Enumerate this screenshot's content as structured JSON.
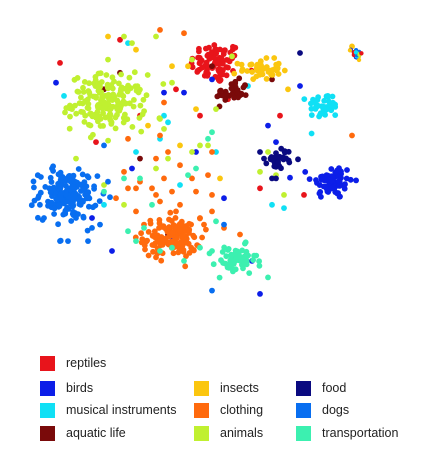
{
  "chart_data": {
    "type": "scatter",
    "title": "",
    "xlabel": "",
    "ylabel": "",
    "axes_visible": false,
    "grid": false,
    "legend_position": "bottom",
    "xlim": [
      0,
      100
    ],
    "ylim": [
      0,
      100
    ],
    "series": [
      {
        "name": "reptiles",
        "color": "#e8141b",
        "clusters": [
          {
            "center": [
              49,
              87
            ],
            "spread": [
              3.2,
              3.2
            ],
            "count": 80
          }
        ],
        "scattered": [
          [
            10,
            87
          ],
          [
            25,
            94
          ],
          [
            19,
            63
          ],
          [
            60,
            49
          ],
          [
            39,
            79
          ],
          [
            71,
            47
          ],
          [
            45,
            71
          ],
          [
            30,
            71
          ],
          [
            52,
            76
          ],
          [
            65,
            71
          ]
        ]
      },
      {
        "name": "birds",
        "color": "#0c1ee8",
        "clusters": [
          {
            "center": [
              78,
              51
            ],
            "spread": [
              2.6,
              2.6
            ],
            "count": 70
          }
        ],
        "scattered": [
          [
            41,
            78
          ],
          [
            36,
            78
          ],
          [
            9,
            81
          ],
          [
            51,
            46
          ],
          [
            23,
            30
          ],
          [
            64,
            63
          ],
          [
            62,
            68
          ],
          [
            48,
            82
          ],
          [
            28,
            55
          ],
          [
            63,
            58
          ],
          [
            38,
            34
          ],
          [
            58,
            27
          ],
          [
            44,
            60
          ],
          [
            18,
            40
          ],
          [
            70,
            80
          ],
          [
            60,
            17
          ]
        ]
      },
      {
        "name": "musical instruments",
        "color": "#10e0f5",
        "clusters": [
          {
            "center": [
              76,
              74
            ],
            "spread": [
              2.0,
              2.0
            ],
            "count": 40
          }
        ],
        "scattered": [
          [
            36,
            71
          ],
          [
            37,
            69
          ],
          [
            11,
            77
          ],
          [
            63,
            44
          ],
          [
            27,
            93
          ],
          [
            23,
            77
          ],
          [
            49,
            60
          ],
          [
            29,
            60
          ],
          [
            40,
            50
          ],
          [
            21,
            44
          ],
          [
            35,
            64
          ],
          [
            57,
            80
          ],
          [
            66,
            43
          ]
        ]
      },
      {
        "name": "aquatic life",
        "color": "#7a0a0a",
        "clusters": [
          {
            "center": [
              53,
              78
            ],
            "spread": [
              2.0,
              1.8
            ],
            "count": 38
          }
        ],
        "scattered": [
          [
            48,
            86
          ],
          [
            30,
            58
          ],
          [
            25,
            84
          ],
          [
            63,
            82
          ],
          [
            37,
            35
          ],
          [
            21,
            79
          ]
        ]
      },
      {
        "name": "insects",
        "color": "#fbc60f",
        "clusters": [
          {
            "center": [
              60,
              85
            ],
            "spread": [
              2.6,
              1.5
            ],
            "count": 48
          }
        ],
        "scattered": [
          [
            29,
            91
          ],
          [
            22,
            95
          ],
          [
            83,
            92
          ],
          [
            38,
            86
          ],
          [
            32,
            68
          ],
          [
            44,
            73
          ],
          [
            67,
            79
          ],
          [
            50,
            52
          ],
          [
            42,
            86
          ],
          [
            40,
            62
          ]
        ]
      },
      {
        "name": "clothing",
        "color": "#ff6a0d",
        "clusters": [
          {
            "center": [
              38,
              34
            ],
            "spread": [
              3.6,
              3.0
            ],
            "count": 130
          }
        ],
        "scattered": [
          [
            35,
            97
          ],
          [
            41,
            96
          ],
          [
            35,
            65
          ],
          [
            36,
            75
          ],
          [
            48,
            60
          ],
          [
            40,
            56
          ],
          [
            26,
            54
          ],
          [
            27,
            64
          ],
          [
            36,
            52
          ],
          [
            29,
            42
          ],
          [
            47,
            53
          ],
          [
            35,
            45
          ],
          [
            44,
            48
          ],
          [
            48,
            42
          ],
          [
            83,
            65
          ],
          [
            45,
            40
          ],
          [
            55,
            35
          ],
          [
            24,
            46
          ],
          [
            33,
            49
          ],
          [
            29,
            49
          ],
          [
            30,
            51
          ],
          [
            31,
            38
          ],
          [
            51,
            37
          ],
          [
            43,
            52
          ],
          [
            34,
            58
          ],
          [
            34,
            47
          ],
          [
            37,
            60
          ],
          [
            40,
            44
          ],
          [
            48,
            47
          ],
          [
            46,
            38
          ],
          [
            27,
            49
          ],
          [
            38,
            48
          ],
          [
            39,
            42
          ]
        ]
      },
      {
        "name": "animals",
        "color": "#c0f030",
        "clusters": [
          {
            "center": [
              22,
              75
            ],
            "spread": [
              4.6,
              4.2
            ],
            "count": 170
          }
        ],
        "scattered": [
          [
            26,
            95
          ],
          [
            22,
            88
          ],
          [
            28,
            93
          ],
          [
            53,
            89
          ],
          [
            43,
            88
          ],
          [
            38,
            81
          ],
          [
            13,
            73
          ],
          [
            14,
            58
          ],
          [
            34,
            95
          ],
          [
            36,
            67
          ],
          [
            45,
            62
          ],
          [
            47,
            62
          ],
          [
            34,
            55
          ],
          [
            37,
            58
          ],
          [
            43,
            60
          ],
          [
            35,
            70
          ],
          [
            49,
            73
          ],
          [
            62,
            60
          ],
          [
            21,
            50
          ],
          [
            26,
            44
          ],
          [
            66,
            47
          ],
          [
            64,
            53
          ],
          [
            60,
            54
          ]
        ]
      },
      {
        "name": "food",
        "color": "#0a0a80",
        "clusters": [
          {
            "center": [
              65,
              58
            ],
            "spread": [
              1.5,
              1.5
            ],
            "count": 30
          }
        ],
        "scattered": [
          [
            61,
            58
          ],
          [
            64,
            52
          ],
          [
            70,
            90
          ],
          [
            63,
            52
          ],
          [
            60,
            60
          ]
        ]
      },
      {
        "name": "dogs",
        "color": "#086ef0",
        "clusters": [
          {
            "center": [
              12,
              47
            ],
            "spread": [
              3.6,
              3.6
            ],
            "count": 170
          }
        ],
        "scattered": [
          [
            10,
            33
          ],
          [
            18,
            37
          ],
          [
            20,
            38
          ],
          [
            8,
            55
          ],
          [
            21,
            62
          ],
          [
            14,
            40
          ],
          [
            22,
            51
          ],
          [
            17,
            33
          ],
          [
            6,
            40
          ],
          [
            12,
            33
          ],
          [
            48,
            18
          ],
          [
            51,
            38
          ]
        ]
      },
      {
        "name": "transportation",
        "color": "#3cf0b0",
        "clusters": [
          {
            "center": [
              54,
              27
            ],
            "spread": [
              2.6,
              2.3
            ],
            "count": 60
          }
        ],
        "scattered": [
          [
            21,
            48
          ],
          [
            26,
            52
          ],
          [
            31,
            37
          ],
          [
            48,
            66
          ],
          [
            42,
            53
          ],
          [
            38,
            31
          ],
          [
            30,
            52
          ],
          [
            44,
            55
          ],
          [
            47,
            64
          ],
          [
            48,
            30
          ],
          [
            33,
            44
          ],
          [
            29,
            33
          ],
          [
            62,
            22
          ],
          [
            45,
            31
          ],
          [
            49,
            39
          ],
          [
            41,
            27
          ],
          [
            35,
            30
          ],
          [
            27,
            36
          ]
        ]
      },
      {
        "name": "",
        "color": "#808080",
        "mixed_cluster": true,
        "clusters": [
          {
            "center": [
              84,
              90
            ],
            "spread": [
              0.8,
              0.8
            ],
            "count": 24,
            "colors": [
              "#086ef0",
              "#0c1ee8",
              "#c0f030",
              "#fbc60f",
              "#10e0f5",
              "#e8141b"
            ]
          }
        ],
        "scattered": []
      }
    ]
  },
  "legend": {
    "items": [
      {
        "label": "reptiles",
        "color": "#e8141b"
      },
      {
        "label": "birds",
        "color": "#0c1ee8"
      },
      {
        "label": "musical instruments",
        "color": "#10e0f5"
      },
      {
        "label": "aquatic life",
        "color": "#7a0a0a"
      },
      {
        "label": "insects",
        "color": "#fbc60f"
      },
      {
        "label": "clothing",
        "color": "#ff6a0d"
      },
      {
        "label": "animals",
        "color": "#c0f030"
      },
      {
        "label": "food",
        "color": "#0a0a80"
      },
      {
        "label": "dogs",
        "color": "#086ef0"
      },
      {
        "label": "transportation",
        "color": "#3cf0b0"
      }
    ]
  }
}
